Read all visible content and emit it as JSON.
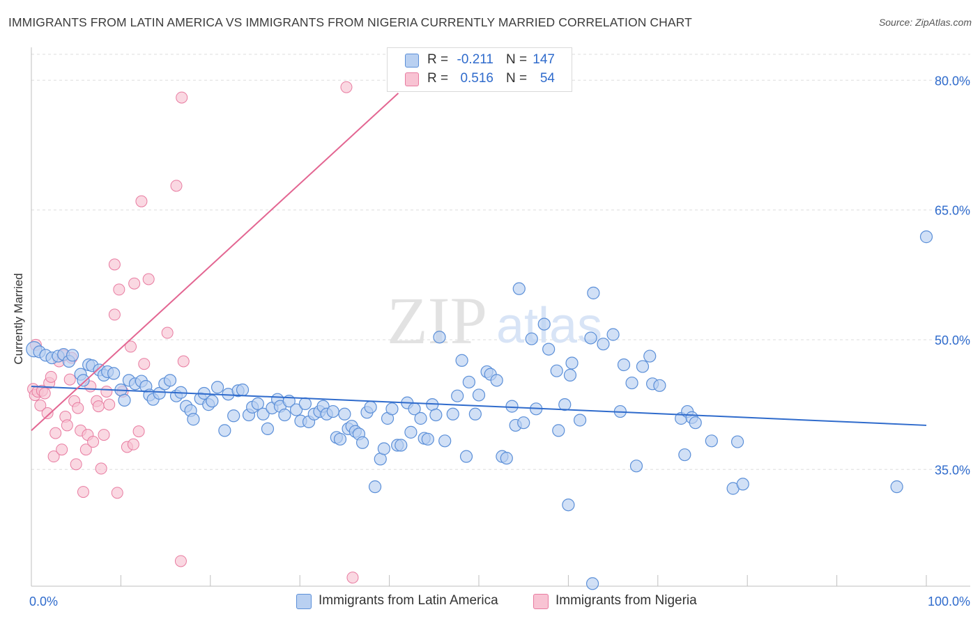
{
  "title": "IMMIGRANTS FROM LATIN AMERICA VS IMMIGRANTS FROM NIGERIA CURRENTLY MARRIED CORRELATION CHART",
  "source": "Source: ZipAtlas.com",
  "watermark": {
    "zip": "ZIP",
    "atlas": "atlas"
  },
  "legend_top": [
    {
      "r_label": "R =",
      "r_value": "-0.211",
      "n_label": "N =",
      "n_value": "147"
    },
    {
      "r_label": "R =",
      "r_value": "0.516",
      "n_label": "N =",
      "n_value": "54"
    }
  ],
  "colors": {
    "blue_fill": "#b9d0f1",
    "blue_stroke": "#5b8fd8",
    "blue_line": "#2f6bcc",
    "pink_fill": "#f8c3d3",
    "pink_stroke": "#e87ba0",
    "pink_line": "#e36692",
    "axis_text": "#2f6bcc",
    "grid": "#dddddd"
  },
  "chart_data": {
    "type": "scatter",
    "title": "IMMIGRANTS FROM LATIN AMERICA VS IMMIGRANTS FROM NIGERIA CURRENTLY MARRIED CORRELATION CHART",
    "xlabel": "",
    "ylabel": "Currently Married",
    "xlim": [
      0,
      100
    ],
    "ylim": [
      21.5,
      83
    ],
    "x_tick_labels": [
      "0.0%",
      "100.0%"
    ],
    "y_ticks": [
      35,
      50,
      65,
      80
    ],
    "y_tick_labels": [
      "35.0%",
      "50.0%",
      "65.0%",
      "80.0%"
    ],
    "grid": true,
    "legend_position": "bottom",
    "series": [
      {
        "name": "Immigrants from Latin America",
        "color": "#5b8fd8",
        "trend": {
          "x": [
            0,
            100
          ],
          "y": [
            44.6,
            40.1
          ]
        },
        "points": [
          [
            0.3,
            48.9
          ],
          [
            0.9,
            48.6
          ],
          [
            1.6,
            48.2
          ],
          [
            2.3,
            47.9
          ],
          [
            3.0,
            48.1
          ],
          [
            3.6,
            48.3
          ],
          [
            4.2,
            47.5
          ],
          [
            4.6,
            48.2
          ],
          [
            5.5,
            46.0
          ],
          [
            5.8,
            45.3
          ],
          [
            6.4,
            47.1
          ],
          [
            6.8,
            47.0
          ],
          [
            7.6,
            46.5
          ],
          [
            8.1,
            45.9
          ],
          [
            8.5,
            46.3
          ],
          [
            9.2,
            46.1
          ],
          [
            10.0,
            44.2
          ],
          [
            10.4,
            43.0
          ],
          [
            10.9,
            45.3
          ],
          [
            11.6,
            44.9
          ],
          [
            12.3,
            45.2
          ],
          [
            12.8,
            44.6
          ],
          [
            13.2,
            43.6
          ],
          [
            13.6,
            43.1
          ],
          [
            14.3,
            43.8
          ],
          [
            14.9,
            44.9
          ],
          [
            15.5,
            45.3
          ],
          [
            16.2,
            43.5
          ],
          [
            16.7,
            43.9
          ],
          [
            17.3,
            42.3
          ],
          [
            17.8,
            41.8
          ],
          [
            18.1,
            40.8
          ],
          [
            18.9,
            43.2
          ],
          [
            19.3,
            43.8
          ],
          [
            19.8,
            42.5
          ],
          [
            20.2,
            42.9
          ],
          [
            20.8,
            44.5
          ],
          [
            21.6,
            39.5
          ],
          [
            22.0,
            43.7
          ],
          [
            22.6,
            41.2
          ],
          [
            23.1,
            44.1
          ],
          [
            23.6,
            44.2
          ],
          [
            24.3,
            41.3
          ],
          [
            24.7,
            42.2
          ],
          [
            25.3,
            42.6
          ],
          [
            25.9,
            41.4
          ],
          [
            26.4,
            39.7
          ],
          [
            26.9,
            42.1
          ],
          [
            27.5,
            43.1
          ],
          [
            27.8,
            42.3
          ],
          [
            28.3,
            41.3
          ],
          [
            28.8,
            42.9
          ],
          [
            29.6,
            41.9
          ],
          [
            30.1,
            40.6
          ],
          [
            30.6,
            42.6
          ],
          [
            31.0,
            40.5
          ],
          [
            31.6,
            41.4
          ],
          [
            32.2,
            41.7
          ],
          [
            32.6,
            42.3
          ],
          [
            33.0,
            41.4
          ],
          [
            33.7,
            41.7
          ],
          [
            34.1,
            38.7
          ],
          [
            34.5,
            38.5
          ],
          [
            35.0,
            41.4
          ],
          [
            35.4,
            39.7
          ],
          [
            35.8,
            40.0
          ],
          [
            36.2,
            39.4
          ],
          [
            36.6,
            39.1
          ],
          [
            37.0,
            38.1
          ],
          [
            37.5,
            41.6
          ],
          [
            37.9,
            42.2
          ],
          [
            38.4,
            33.0
          ],
          [
            39.0,
            36.2
          ],
          [
            39.4,
            37.4
          ],
          [
            39.8,
            40.9
          ],
          [
            40.3,
            42.0
          ],
          [
            40.9,
            37.8
          ],
          [
            41.3,
            37.8
          ],
          [
            42.0,
            42.7
          ],
          [
            42.4,
            39.3
          ],
          [
            42.8,
            42.0
          ],
          [
            43.5,
            40.9
          ],
          [
            43.9,
            38.6
          ],
          [
            44.3,
            38.5
          ],
          [
            44.8,
            42.5
          ],
          [
            45.2,
            41.3
          ],
          [
            45.6,
            50.3
          ],
          [
            46.2,
            38.3
          ],
          [
            47.1,
            41.4
          ],
          [
            47.6,
            43.5
          ],
          [
            48.1,
            47.6
          ],
          [
            48.6,
            36.5
          ],
          [
            48.9,
            45.1
          ],
          [
            49.6,
            41.4
          ],
          [
            50.0,
            43.6
          ],
          [
            50.9,
            46.3
          ],
          [
            51.3,
            46.0
          ],
          [
            52.0,
            45.3
          ],
          [
            52.6,
            36.5
          ],
          [
            53.1,
            36.3
          ],
          [
            53.7,
            42.3
          ],
          [
            54.1,
            40.1
          ],
          [
            54.5,
            55.9
          ],
          [
            55.0,
            40.4
          ],
          [
            55.9,
            50.1
          ],
          [
            56.4,
            42.0
          ],
          [
            57.3,
            51.8
          ],
          [
            57.8,
            48.9
          ],
          [
            58.7,
            46.4
          ],
          [
            58.9,
            39.5
          ],
          [
            59.6,
            42.5
          ],
          [
            60.2,
            45.9
          ],
          [
            60.4,
            47.3
          ],
          [
            61.3,
            40.7
          ],
          [
            62.5,
            50.2
          ],
          [
            62.8,
            55.4
          ],
          [
            63.9,
            49.5
          ],
          [
            65.0,
            50.6
          ],
          [
            65.8,
            41.7
          ],
          [
            66.2,
            47.1
          ],
          [
            67.1,
            45.0
          ],
          [
            67.6,
            35.4
          ],
          [
            68.3,
            46.9
          ],
          [
            69.1,
            48.1
          ],
          [
            69.4,
            44.9
          ],
          [
            70.2,
            44.7
          ],
          [
            72.6,
            40.9
          ],
          [
            73.0,
            36.7
          ],
          [
            73.3,
            41.7
          ],
          [
            73.8,
            41.0
          ],
          [
            74.2,
            40.4
          ],
          [
            76.0,
            38.3
          ],
          [
            78.4,
            32.8
          ],
          [
            78.9,
            38.2
          ],
          [
            79.5,
            33.3
          ],
          [
            60.0,
            30.9
          ],
          [
            62.7,
            21.8
          ],
          [
            96.7,
            33.0
          ],
          [
            100.0,
            61.9
          ]
        ]
      },
      {
        "name": "Immigrants from Nigeria",
        "color": "#e87ba0",
        "trend": {
          "x": [
            0,
            41
          ],
          "y": [
            39.5,
            78.5
          ]
        },
        "points": [
          [
            0.2,
            44.3
          ],
          [
            0.4,
            43.6
          ],
          [
            0.7,
            44.0
          ],
          [
            1.0,
            42.4
          ],
          [
            1.2,
            44.1
          ],
          [
            1.5,
            43.8
          ],
          [
            1.8,
            41.5
          ],
          [
            2.0,
            45.0
          ],
          [
            2.2,
            45.7
          ],
          [
            2.5,
            36.5
          ],
          [
            2.7,
            39.2
          ],
          [
            3.1,
            47.5
          ],
          [
            3.4,
            37.3
          ],
          [
            3.6,
            48.2
          ],
          [
            3.8,
            41.1
          ],
          [
            4.0,
            40.1
          ],
          [
            4.3,
            45.4
          ],
          [
            4.5,
            47.9
          ],
          [
            4.8,
            42.9
          ],
          [
            5.0,
            35.6
          ],
          [
            5.2,
            42.1
          ],
          [
            5.5,
            39.5
          ],
          [
            5.8,
            32.4
          ],
          [
            6.1,
            37.3
          ],
          [
            6.3,
            39.0
          ],
          [
            6.6,
            44.6
          ],
          [
            6.9,
            38.2
          ],
          [
            7.3,
            42.9
          ],
          [
            7.5,
            42.3
          ],
          [
            7.8,
            35.1
          ],
          [
            8.1,
            39.0
          ],
          [
            8.4,
            44.0
          ],
          [
            8.7,
            42.5
          ],
          [
            9.3,
            52.9
          ],
          [
            9.3,
            58.7
          ],
          [
            9.6,
            32.3
          ],
          [
            9.8,
            55.8
          ],
          [
            10.2,
            44.0
          ],
          [
            10.7,
            37.6
          ],
          [
            11.1,
            49.2
          ],
          [
            11.4,
            37.9
          ],
          [
            11.5,
            56.5
          ],
          [
            12.0,
            39.4
          ],
          [
            12.6,
            47.2
          ],
          [
            13.1,
            57.0
          ],
          [
            12.3,
            66.0
          ],
          [
            15.2,
            50.8
          ],
          [
            16.2,
            67.8
          ],
          [
            16.7,
            24.4
          ],
          [
            16.8,
            78.0
          ],
          [
            17.0,
            47.5
          ],
          [
            35.2,
            79.2
          ],
          [
            35.9,
            22.5
          ],
          [
            0.5,
            49.4
          ]
        ]
      }
    ]
  },
  "bottom_legend": [
    {
      "label": "Immigrants from Latin America"
    },
    {
      "label": "Immigrants from Nigeria"
    }
  ]
}
